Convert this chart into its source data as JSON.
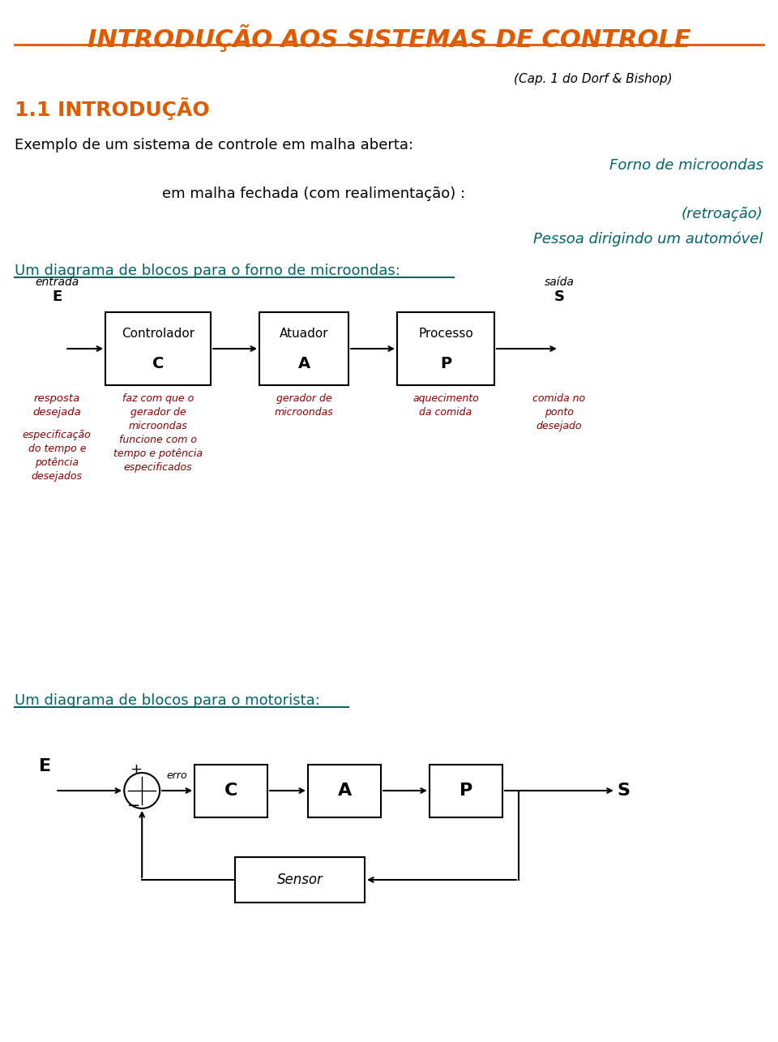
{
  "title": "INTRODUÇÃO AOS SISTEMAS DE CONTROLE",
  "subtitle": "(Cap. 1 do Dorf & Bishop)",
  "section": "1.1 INTRODUÇÃO",
  "line1": "Exemplo de um sistema de controle em malha aberta:",
  "line1_right": "Forno de microondas",
  "line2": "em malha fechada (com realimentação) :",
  "line2_right": "(retroação)",
  "line3_right": "Pessoa dirigindo um automóvel",
  "diagram1_title": "Um diagrama de blocos para o forno de microondas:",
  "diagram2_title": "Um diagrama de blocos para o motorista:",
  "orange": "#E05A00",
  "dark_red": "#8B0000",
  "teal": "#006666",
  "black": "#000000",
  "white": "#FFFFFF",
  "bg": "#FFFFFF"
}
